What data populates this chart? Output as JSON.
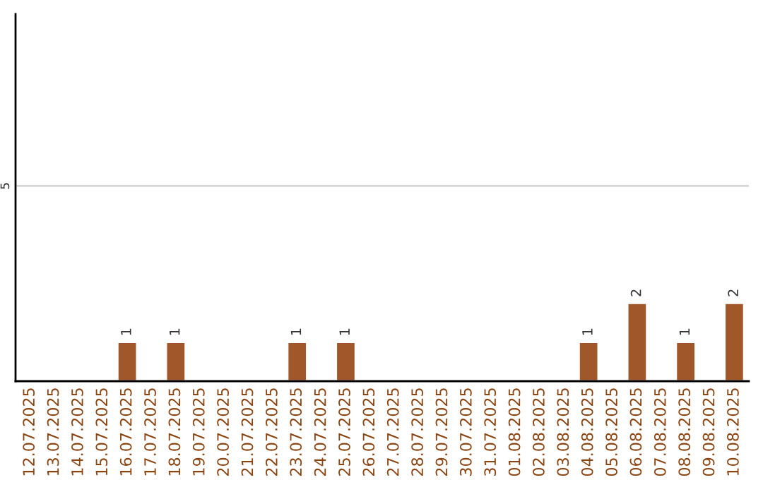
{
  "chart_data": {
    "type": "bar",
    "categories": [
      "12.07.2025",
      "13.07.2025",
      "14.07.2025",
      "15.07.2025",
      "16.07.2025",
      "17.07.2025",
      "18.07.2025",
      "19.07.2025",
      "20.07.2025",
      "21.07.2025",
      "22.07.2025",
      "23.07.2025",
      "24.07.2025",
      "25.07.2025",
      "26.07.2025",
      "27.07.2025",
      "28.07.2025",
      "29.07.2025",
      "30.07.2025",
      "31.07.2025",
      "01.08.2025",
      "02.08.2025",
      "03.08.2025",
      "04.08.2025",
      "05.08.2025",
      "06.08.2025",
      "07.08.2025",
      "08.08.2025",
      "09.08.2025",
      "10.08.2025"
    ],
    "values": [
      0,
      0,
      0,
      0,
      1,
      0,
      1,
      0,
      0,
      0,
      0,
      1,
      0,
      1,
      0,
      0,
      0,
      0,
      0,
      0,
      0,
      0,
      0,
      1,
      0,
      2,
      0,
      1,
      0,
      2
    ],
    "color": "#a0572a",
    "value_labels": [
      null,
      null,
      null,
      null,
      "1",
      null,
      "1",
      null,
      null,
      null,
      null,
      "1",
      null,
      "1",
      null,
      null,
      null,
      null,
      null,
      null,
      null,
      null,
      null,
      "1",
      null,
      "2",
      null,
      "1",
      null,
      "2"
    ],
    "ylim": [
      0,
      9.4
    ],
    "yticks": [
      5
    ],
    "grid": "y"
  }
}
